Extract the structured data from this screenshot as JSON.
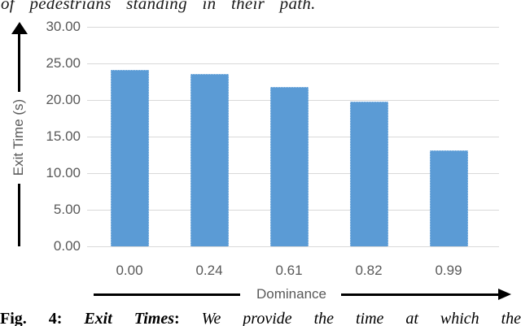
{
  "page": {
    "top_text": "of pedestrians standing in their path.",
    "caption": {
      "fig_label": "Fig. 4:",
      "title": "Exit Times",
      "separator": ":",
      "body": "We provide the time at which the"
    }
  },
  "chart_data": {
    "type": "bar",
    "title": "",
    "categories": [
      "0.00",
      "0.24",
      "0.61",
      "0.82",
      "0.99"
    ],
    "values": [
      24.1,
      23.6,
      21.8,
      19.8,
      13.1
    ],
    "xlabel": "Dominance",
    "ylabel": "Exit Time (s)",
    "ylim": [
      0,
      30
    ],
    "ytick_labels": [
      "30.00",
      "25.00",
      "20.00",
      "15.00",
      "10.00",
      "5.00",
      "0.00"
    ],
    "grid": true,
    "legend": false,
    "colors": {
      "bar": "#5B9BD5",
      "bar_border_dotted": "#A9CBEA",
      "gridline": "#D9D9D9",
      "tick_label": "#595959",
      "axis_arrow": "#000000"
    }
  }
}
